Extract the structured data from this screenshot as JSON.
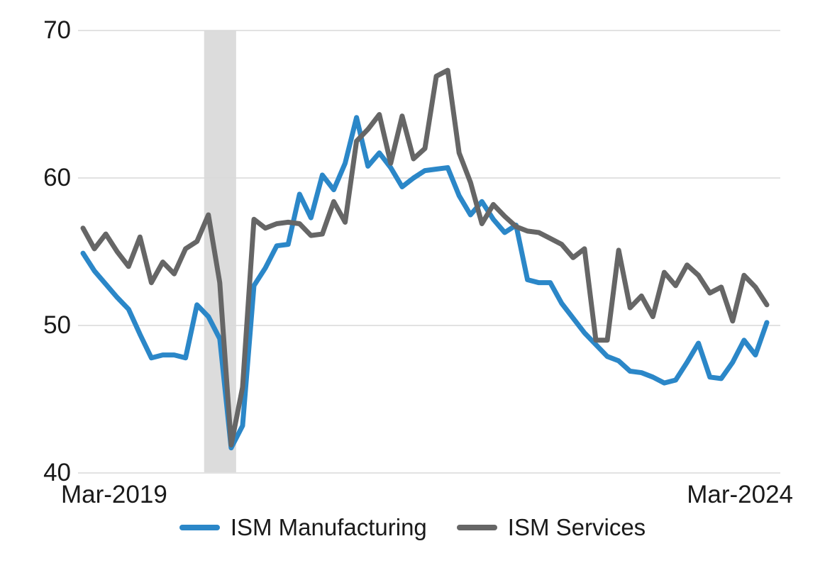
{
  "chart_data": {
    "type": "line",
    "title": "",
    "xlabel": "",
    "ylabel": "",
    "ylim": [
      40,
      70
    ],
    "y_axis_ticks": [
      70,
      60,
      50,
      40
    ],
    "x_tick_labels_shown": [
      "Mar-2019",
      "Mar-2024"
    ],
    "grid": "horizontal",
    "legend_position": "bottom-center",
    "recession_band": {
      "from_month": "Feb-2020",
      "to_month": "Apr-2020",
      "color": "#dcdcdc"
    },
    "months": [
      "Mar-2019",
      "Apr-2019",
      "May-2019",
      "Jun-2019",
      "Jul-2019",
      "Aug-2019",
      "Sep-2019",
      "Oct-2019",
      "Nov-2019",
      "Dec-2019",
      "Jan-2020",
      "Feb-2020",
      "Mar-2020",
      "Apr-2020",
      "May-2020",
      "Jun-2020",
      "Jul-2020",
      "Aug-2020",
      "Sep-2020",
      "Oct-2020",
      "Nov-2020",
      "Dec-2020",
      "Jan-2021",
      "Feb-2021",
      "Mar-2021",
      "Apr-2021",
      "May-2021",
      "Jun-2021",
      "Jul-2021",
      "Aug-2021",
      "Sep-2021",
      "Oct-2021",
      "Nov-2021",
      "Dec-2021",
      "Jan-2022",
      "Feb-2022",
      "Mar-2022",
      "Apr-2022",
      "May-2022",
      "Jun-2022",
      "Jul-2022",
      "Aug-2022",
      "Sep-2022",
      "Oct-2022",
      "Nov-2022",
      "Dec-2022",
      "Jan-2023",
      "Feb-2023",
      "Mar-2023",
      "Apr-2023",
      "May-2023",
      "Jun-2023",
      "Jul-2023",
      "Aug-2023",
      "Sep-2023",
      "Oct-2023",
      "Nov-2023",
      "Dec-2023",
      "Jan-2024",
      "Feb-2024",
      "Mar-2024"
    ],
    "series": [
      {
        "name": "ISM Manufacturing",
        "color": "#2b87c8",
        "values": [
          54.9,
          53.7,
          52.8,
          51.9,
          51.1,
          49.4,
          47.8,
          48.0,
          48.0,
          47.8,
          51.4,
          50.6,
          49.1,
          41.7,
          43.2,
          52.7,
          53.9,
          55.4,
          55.5,
          58.9,
          57.3,
          60.2,
          59.2,
          61.0,
          64.1,
          60.8,
          61.7,
          60.7,
          59.4,
          60.0,
          60.5,
          60.6,
          60.7,
          58.8,
          57.5,
          58.4,
          57.2,
          56.3,
          56.8,
          53.1,
          52.9,
          52.9,
          51.5,
          50.5,
          49.5,
          48.7,
          47.9,
          47.6,
          46.9,
          46.8,
          46.5,
          46.1,
          46.3,
          47.5,
          48.8,
          46.5,
          46.4,
          47.5,
          49.0,
          48.0,
          50.2
        ]
      },
      {
        "name": "ISM Services",
        "color": "#666666",
        "values": [
          56.6,
          55.2,
          56.2,
          55.0,
          54.0,
          56.0,
          52.9,
          54.3,
          53.5,
          55.2,
          55.7,
          57.5,
          52.9,
          41.9,
          45.8,
          57.2,
          56.6,
          56.9,
          57.0,
          56.9,
          56.1,
          56.2,
          58.4,
          57.0,
          62.5,
          63.3,
          64.3,
          61.0,
          64.2,
          61.3,
          62.0,
          66.9,
          67.3,
          61.7,
          59.7,
          56.9,
          58.2,
          57.4,
          56.7,
          56.4,
          56.3,
          55.9,
          55.5,
          54.6,
          55.2,
          49.0,
          49.0,
          55.1,
          51.2,
          52.0,
          50.6,
          53.6,
          52.7,
          54.1,
          53.4,
          52.2,
          52.6,
          50.3,
          53.4,
          52.6,
          51.4
        ]
      }
    ]
  },
  "colors": {
    "background": "#ffffff",
    "gridline": "#d9d9d9",
    "recession_band": "#dcdcdc",
    "axis_text": "#1a1a1a"
  }
}
